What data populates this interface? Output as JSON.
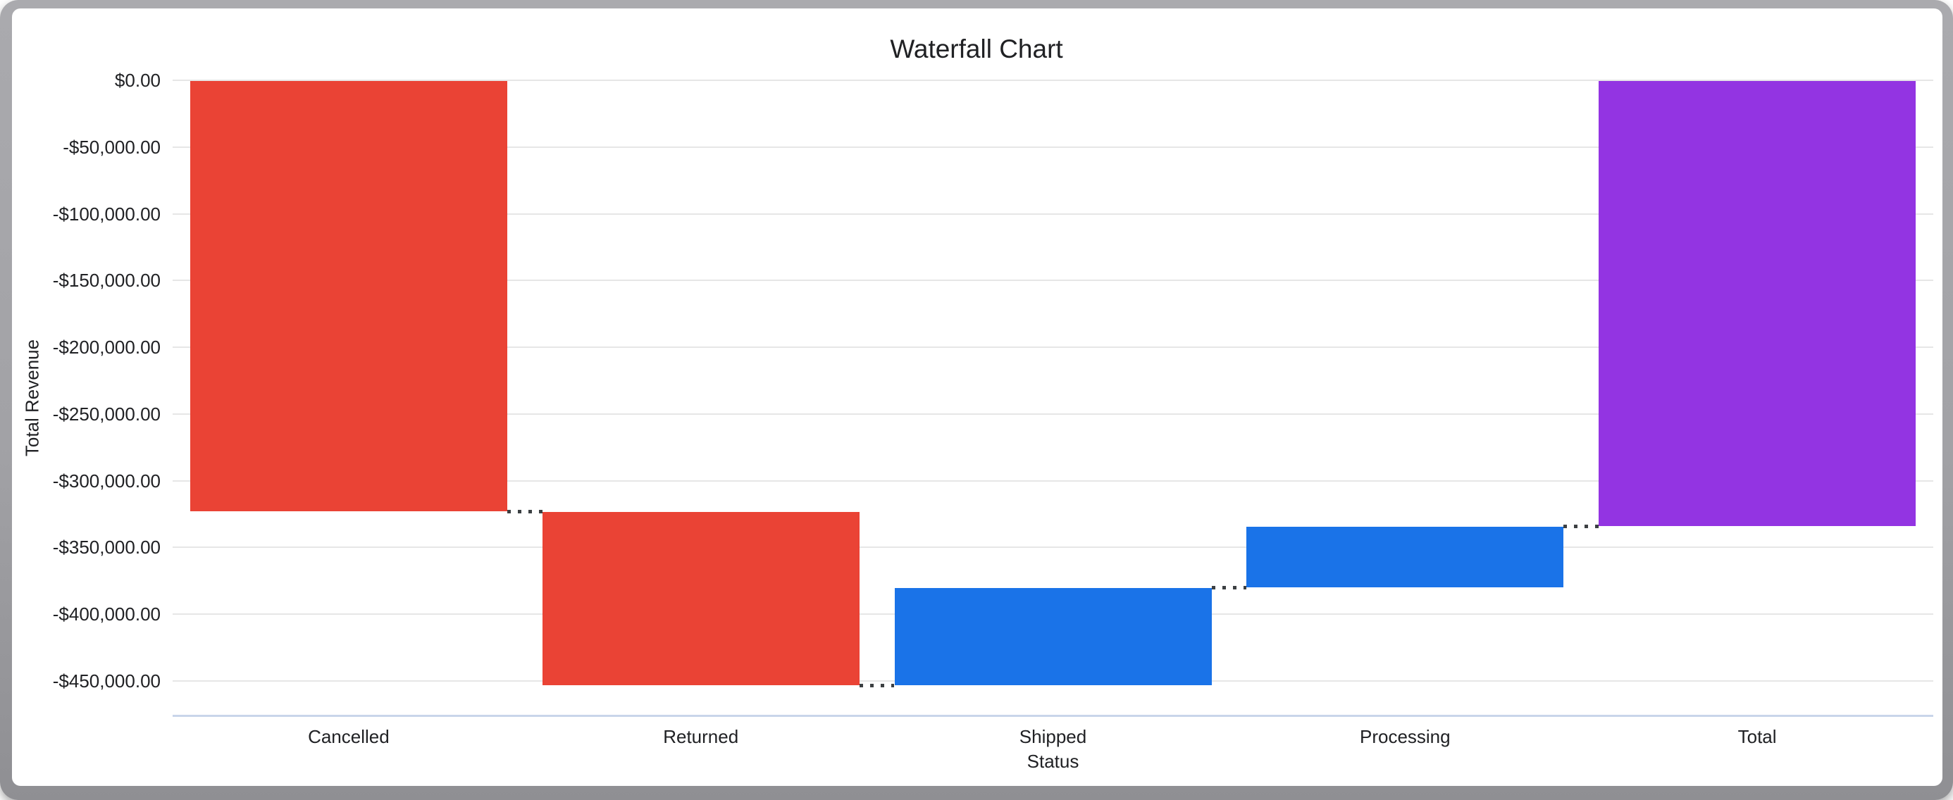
{
  "chart_data": {
    "type": "bar",
    "subtype": "waterfall",
    "title": "Waterfall Chart",
    "xlabel": "Status",
    "ylabel": "Total Revenue",
    "categories": [
      "Cancelled",
      "Returned",
      "Shipped",
      "Processing",
      "Total"
    ],
    "bars": [
      {
        "label": "Cancelled",
        "start": 0,
        "end": -323000,
        "delta": -323000,
        "role": "decrease"
      },
      {
        "label": "Returned",
        "start": -323000,
        "end": -453000,
        "delta": -130000,
        "role": "decrease"
      },
      {
        "label": "Shipped",
        "start": -453000,
        "end": -380000,
        "delta": 73000,
        "role": "increase"
      },
      {
        "label": "Processing",
        "start": -380000,
        "end": -334000,
        "delta": 46000,
        "role": "increase"
      },
      {
        "label": "Total",
        "start": 0,
        "end": -334000,
        "delta": -334000,
        "role": "total"
      }
    ],
    "y_ticks": [
      {
        "value": 0,
        "label": "$0.00"
      },
      {
        "value": -50000,
        "label": "-$50,000.00"
      },
      {
        "value": -100000,
        "label": "-$100,000.00"
      },
      {
        "value": -150000,
        "label": "-$150,000.00"
      },
      {
        "value": -200000,
        "label": "-$200,000.00"
      },
      {
        "value": -250000,
        "label": "-$250,000.00"
      },
      {
        "value": -300000,
        "label": "-$300,000.00"
      },
      {
        "value": -350000,
        "label": "-$350,000.00"
      },
      {
        "value": -400000,
        "label": "-$400,000.00"
      },
      {
        "value": -450000,
        "label": "-$450,000.00"
      }
    ],
    "ylim": [
      -476500,
      0
    ],
    "grid": true,
    "legend": "none",
    "connectors": "dotted",
    "colors": {
      "decrease": "#ea4335",
      "increase": "#1a73e8",
      "total": "#9334e2",
      "gridline": "#e6e6e6",
      "axis_line": "#c9d5ea",
      "connector": "#3c4043",
      "text": "#202124",
      "frame": "#a2a2a6"
    }
  }
}
